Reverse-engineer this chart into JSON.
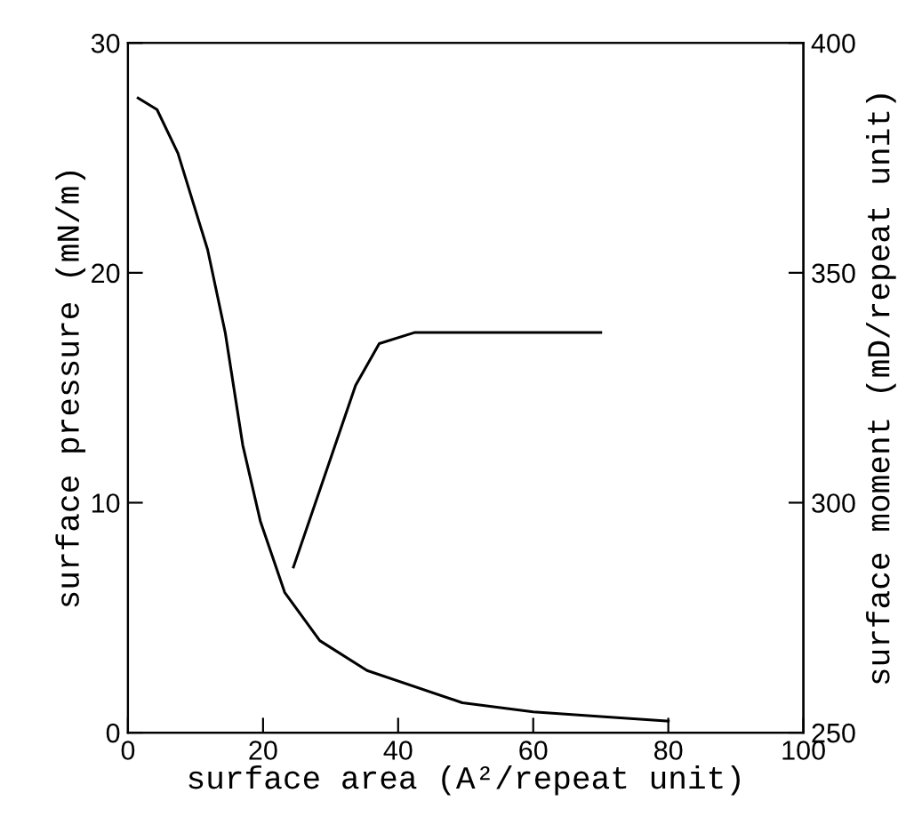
{
  "chart_data": {
    "type": "line",
    "xlabel": "surface area (A²/repeat unit)",
    "ylabel": "surface pressure (mN/m)",
    "y2label": "surface moment (mD/repeat unit)",
    "xlim": [
      0,
      100
    ],
    "xticks": [
      0,
      20,
      40,
      60,
      80,
      100
    ],
    "ylim": [
      0,
      30
    ],
    "yticks": [
      0,
      10,
      20,
      30
    ],
    "y2lim": [
      250,
      400
    ],
    "y2ticks": [
      250,
      300,
      350,
      400
    ],
    "grid": false,
    "legend": false,
    "marker": "none",
    "line_style": "solid",
    "series": [
      {
        "color": "#000000",
        "x": [
          1.5,
          4.3,
          7.4,
          11.8,
          14.4,
          17,
          19.6,
          23.2,
          28.4,
          35.4,
          49.5,
          60,
          70,
          80
        ],
        "values": [
          27.6,
          27.1,
          25.2,
          21.0,
          17.4,
          12.5,
          9.2,
          6.1,
          4.0,
          2.7,
          1.3,
          0.9,
          0.7,
          0.5
        ]
      },
      {
        "color": "#000000",
        "axis": "y2",
        "x": [
          24.5,
          33.7,
          37.2,
          42.4,
          55,
          70
        ],
        "values": [
          286,
          325.5,
          334.6,
          337,
          337,
          337
        ]
      }
    ]
  }
}
